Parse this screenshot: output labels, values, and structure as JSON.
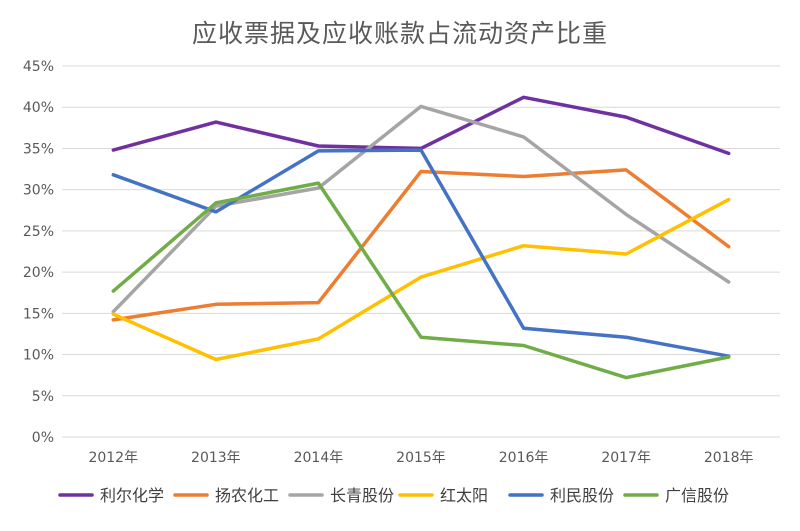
{
  "chart_data": {
    "type": "line",
    "title": "应收票据及应收账款占流动资产比重",
    "categories": [
      "2012年",
      "2013年",
      "2014年",
      "2015年",
      "2016年",
      "2017年",
      "2018年"
    ],
    "y_ticks": [
      "0%",
      "5%",
      "10%",
      "15%",
      "20%",
      "25%",
      "30%",
      "35%",
      "40%",
      "45%"
    ],
    "ylim": [
      0,
      45
    ],
    "grid": true,
    "legend_position": "bottom",
    "series": [
      {
        "name": "利尔化学",
        "color": "#7030a0",
        "values": [
          34.8,
          38.2,
          35.3,
          35.0,
          41.2,
          38.8,
          34.4
        ]
      },
      {
        "name": "扬农化工",
        "color": "#ed7d31",
        "values": [
          14.2,
          16.1,
          16.3,
          32.2,
          31.6,
          32.4,
          23.1
        ]
      },
      {
        "name": "长青股份",
        "color": "#a5a5a5",
        "values": [
          15.2,
          28.0,
          30.2,
          40.1,
          36.4,
          27.0,
          18.8
        ]
      },
      {
        "name": "红太阳",
        "color": "#ffc000",
        "values": [
          14.9,
          9.4,
          11.9,
          19.4,
          23.2,
          22.2,
          28.8
        ]
      },
      {
        "name": "利民股份",
        "color": "#4472c4",
        "values": [
          31.8,
          27.3,
          34.7,
          34.8,
          13.2,
          12.1,
          9.8
        ]
      },
      {
        "name": "广信股份",
        "color": "#70ad47",
        "values": [
          17.7,
          28.4,
          30.8,
          12.1,
          11.1,
          7.2,
          9.7
        ]
      }
    ]
  }
}
